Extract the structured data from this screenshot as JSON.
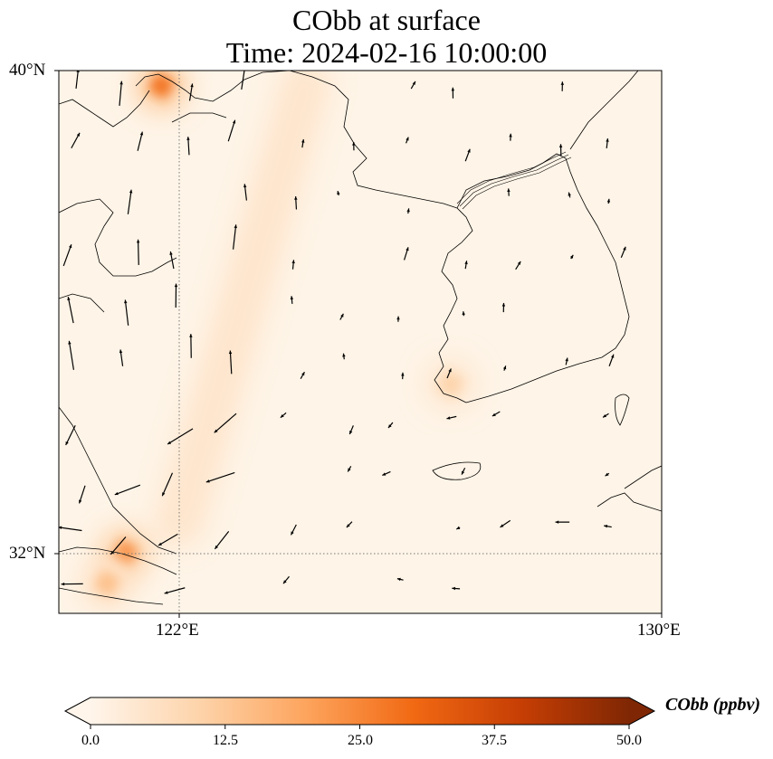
{
  "title_line1": "CObb at surface",
  "title_line2": "Time: 2024-02-16 10:00:00",
  "lat_labels": [
    "40°N",
    "32°N"
  ],
  "lon_labels": [
    "122°E",
    "130°E"
  ],
  "colorbar": {
    "label": "CObb (ppbv)",
    "min": 0.0,
    "max": 50.0,
    "tick_labels": [
      "0.0",
      "12.5",
      "25.0",
      "37.5",
      "50.0"
    ],
    "colors": [
      "#fff5eb",
      "#fdd4ab",
      "#fda45d",
      "#f16913",
      "#c63e04",
      "#7f2704"
    ]
  },
  "chart_data": {
    "type": "heatmap",
    "variable": "CObb",
    "units": "ppbv",
    "lat_range": [
      31,
      40
    ],
    "lon_range": [
      120,
      130
    ],
    "hotspots": [
      {
        "lon": 121.7,
        "lat": 39.75,
        "value": 28
      },
      {
        "lon": 121.1,
        "lat": 32.0,
        "value": 24
      },
      {
        "lon": 120.8,
        "lat": 31.5,
        "value": 14
      },
      {
        "lon": 126.5,
        "lat": 34.8,
        "value": 10
      }
    ],
    "plume": {
      "from": [
        124.1,
        39.8
      ],
      "to": [
        122.0,
        32.5
      ],
      "value": 6
    }
  }
}
